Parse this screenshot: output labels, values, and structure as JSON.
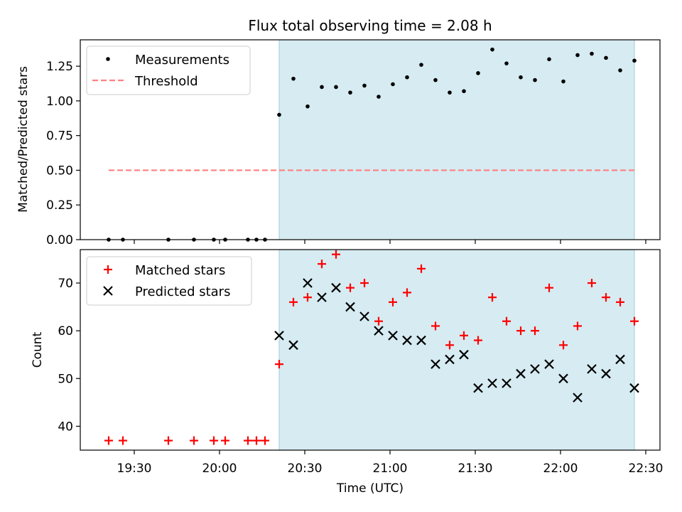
{
  "chart_data": {
    "title": "Flux total observing time = 2.08 h",
    "xlabel": "Time (UTC)",
    "x_ticks": [
      "19:30",
      "20:00",
      "20:30",
      "21:00",
      "21:30",
      "22:00",
      "22:30"
    ],
    "xlim": [
      "19:11",
      "22:35"
    ],
    "shaded_interval": [
      "20:21",
      "22:26"
    ],
    "shade_color": "#add8e6",
    "panels": [
      {
        "type": "scatter",
        "ylabel": "Matched/Predicted stars",
        "ylim": [
          0,
          1.44
        ],
        "y_ticks": [
          "0.00",
          "0.25",
          "0.50",
          "0.75",
          "1.00",
          "1.25"
        ],
        "grid": false,
        "legend_position": "upper-left",
        "series": [
          {
            "name": "Measurements",
            "marker": "dot",
            "color": "#000000",
            "x": [
              "19:21",
              "19:26",
              "19:42",
              "19:51",
              "19:58",
              "20:02",
              "20:10",
              "20:13",
              "20:16",
              "20:21",
              "20:26",
              "20:31",
              "20:36",
              "20:41",
              "20:46",
              "20:51",
              "20:56",
              "21:01",
              "21:06",
              "21:11",
              "21:16",
              "21:21",
              "21:26",
              "21:31",
              "21:36",
              "21:41",
              "21:46",
              "21:51",
              "21:56",
              "22:01",
              "22:06",
              "22:11",
              "22:16",
              "22:21",
              "22:26"
            ],
            "y": [
              0,
              0,
              0,
              0,
              0,
              0,
              0,
              0,
              0,
              0.9,
              1.16,
              0.96,
              1.1,
              1.1,
              1.06,
              1.11,
              1.03,
              1.12,
              1.17,
              1.26,
              1.15,
              1.06,
              1.07,
              1.2,
              1.37,
              1.27,
              1.17,
              1.15,
              1.3,
              1.14,
              1.33,
              1.34,
              1.31,
              1.22,
              1.29
            ]
          },
          {
            "name": "Threshold",
            "marker": "dashed-line",
            "color": "#ff7f7f",
            "x": [
              "19:21",
              "22:26"
            ],
            "y": [
              0.5,
              0.5
            ]
          }
        ]
      },
      {
        "type": "scatter",
        "ylabel": "Count",
        "ylim": [
          35,
          77
        ],
        "y_ticks": [
          "40",
          "50",
          "60",
          "70"
        ],
        "grid": false,
        "legend_position": "upper-left",
        "series": [
          {
            "name": "Matched stars",
            "marker": "plus",
            "color": "#ff0000",
            "x": [
              "19:21",
              "19:26",
              "19:42",
              "19:51",
              "19:58",
              "20:02",
              "20:10",
              "20:13",
              "20:16",
              "20:21",
              "20:26",
              "20:31",
              "20:36",
              "20:41",
              "20:46",
              "20:51",
              "20:56",
              "21:01",
              "21:06",
              "21:11",
              "21:16",
              "21:21",
              "21:26",
              "21:31",
              "21:36",
              "21:41",
              "21:46",
              "21:51",
              "21:56",
              "22:01",
              "22:06",
              "22:11",
              "22:16",
              "22:21",
              "22:26"
            ],
            "y": [
              37,
              37,
              37,
              37,
              37,
              37,
              37,
              37,
              37,
              53,
              66,
              67,
              74,
              76,
              69,
              70,
              62,
              66,
              68,
              73,
              61,
              57,
              59,
              58,
              67,
              62,
              60,
              60,
              69,
              57,
              61,
              70,
              67,
              66,
              62
            ]
          },
          {
            "name": "Predicted stars",
            "marker": "x",
            "color": "#000000",
            "x": [
              "20:21",
              "20:26",
              "20:31",
              "20:36",
              "20:41",
              "20:46",
              "20:51",
              "20:56",
              "21:01",
              "21:06",
              "21:11",
              "21:16",
              "21:21",
              "21:26",
              "21:31",
              "21:36",
              "21:41",
              "21:46",
              "21:51",
              "21:56",
              "22:01",
              "22:06",
              "22:11",
              "22:16",
              "22:21",
              "22:26"
            ],
            "y": [
              59,
              57,
              70,
              67,
              69,
              65,
              63,
              60,
              59,
              58,
              58,
              53,
              54,
              55,
              48,
              49,
              49,
              51,
              52,
              53,
              50,
              46,
              52,
              51,
              54,
              48
            ]
          }
        ]
      }
    ]
  }
}
